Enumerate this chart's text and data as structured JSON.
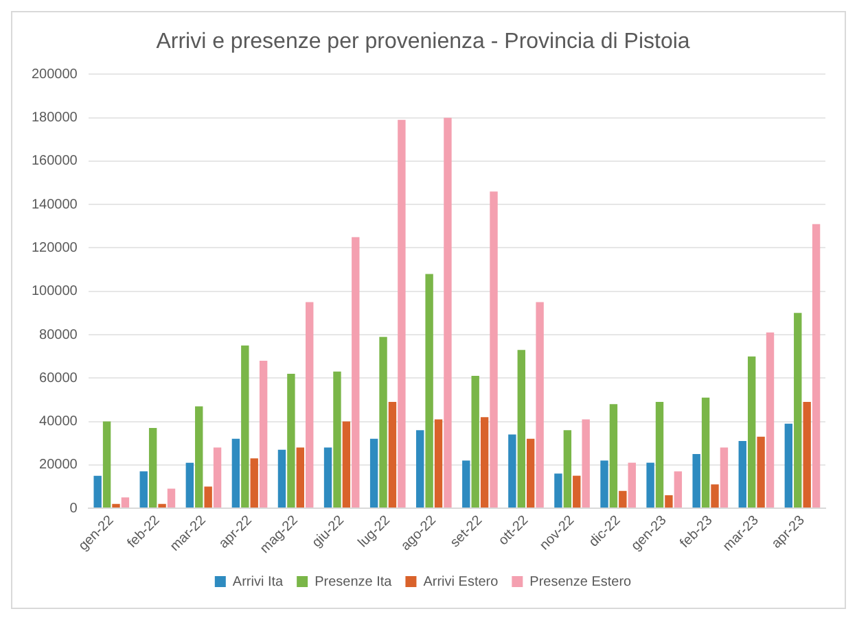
{
  "chart_data": {
    "type": "bar",
    "title": "Arrivi e presenze per provenienza - Provincia di Pistoia",
    "categories": [
      "gen-22",
      "feb-22",
      "mar-22",
      "apr-22",
      "mag-22",
      "giu-22",
      "lug-22",
      "ago-22",
      "set-22",
      "ott-22",
      "nov-22",
      "dic-22",
      "gen-23",
      "feb-23",
      "mar-23",
      "apr-23"
    ],
    "series": [
      {
        "name": "Arrivi Ita",
        "color": "#2e8bc0",
        "values": [
          15000,
          17000,
          21000,
          32000,
          27000,
          28000,
          32000,
          36000,
          22000,
          34000,
          16000,
          22000,
          21000,
          25000,
          31000,
          39000
        ]
      },
      {
        "name": "Presenze Ita",
        "color": "#7ab648",
        "values": [
          40000,
          37000,
          47000,
          75000,
          62000,
          63000,
          79000,
          108000,
          61000,
          73000,
          36000,
          48000,
          49000,
          51000,
          70000,
          90000
        ]
      },
      {
        "name": "Arrivi Estero",
        "color": "#d9622b",
        "values": [
          2000,
          2000,
          10000,
          23000,
          28000,
          40000,
          49000,
          41000,
          42000,
          32000,
          15000,
          8000,
          6000,
          11000,
          33000,
          49000
        ]
      },
      {
        "name": "Presenze Estero",
        "color": "#f4a0b0",
        "values": [
          5000,
          9000,
          28000,
          68000,
          95000,
          125000,
          179000,
          180000,
          146000,
          95000,
          41000,
          21000,
          17000,
          28000,
          81000,
          131000
        ]
      }
    ],
    "ylim": [
      0,
      200000
    ],
    "yticks": [
      0,
      20000,
      40000,
      60000,
      80000,
      100000,
      120000,
      140000,
      160000,
      180000,
      200000
    ],
    "grid": "y",
    "legend": "bottom"
  }
}
